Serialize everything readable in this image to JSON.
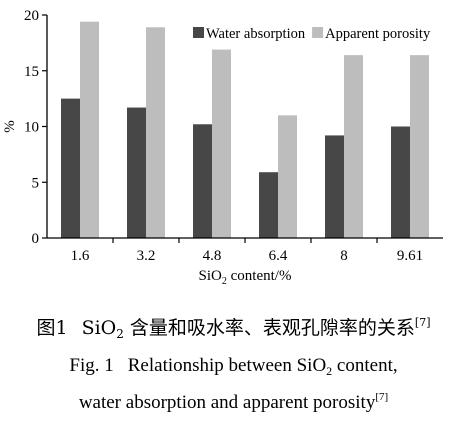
{
  "chart_data": {
    "type": "bar",
    "categories": [
      "1.6",
      "3.2",
      "4.8",
      "6.4",
      "8",
      "9.61"
    ],
    "series": [
      {
        "name": "Water absorption",
        "color": "#474747",
        "values": [
          12.5,
          11.7,
          10.2,
          5.9,
          9.2,
          10.0
        ]
      },
      {
        "name": "Apparent porosity",
        "color": "#bdbdbd",
        "values": [
          19.4,
          18.9,
          16.9,
          11.0,
          16.4,
          16.4
        ]
      }
    ],
    "ylabel": "%",
    "xlabel": {
      "prefix": "SiO",
      "sub": "2",
      "suffix": " content/%"
    },
    "ylim": [
      0,
      20
    ],
    "yticks": [
      "0",
      "5",
      "10",
      "15",
      "20"
    ],
    "legend": "top-right",
    "grid": false
  },
  "caption": {
    "zh": {
      "fig": "图1",
      "pre": "SiO",
      "sub": "2",
      "post": " 含量和吸水率、表观孔隙率的关系",
      "ref": "[7]"
    },
    "en_line1": {
      "fig": "Fig. 1",
      "pre": "Relationship between SiO",
      "sub": "2",
      "post": " content,"
    },
    "en_line2": {
      "text": "water absorption and apparent porosity",
      "ref": "[7]"
    }
  }
}
